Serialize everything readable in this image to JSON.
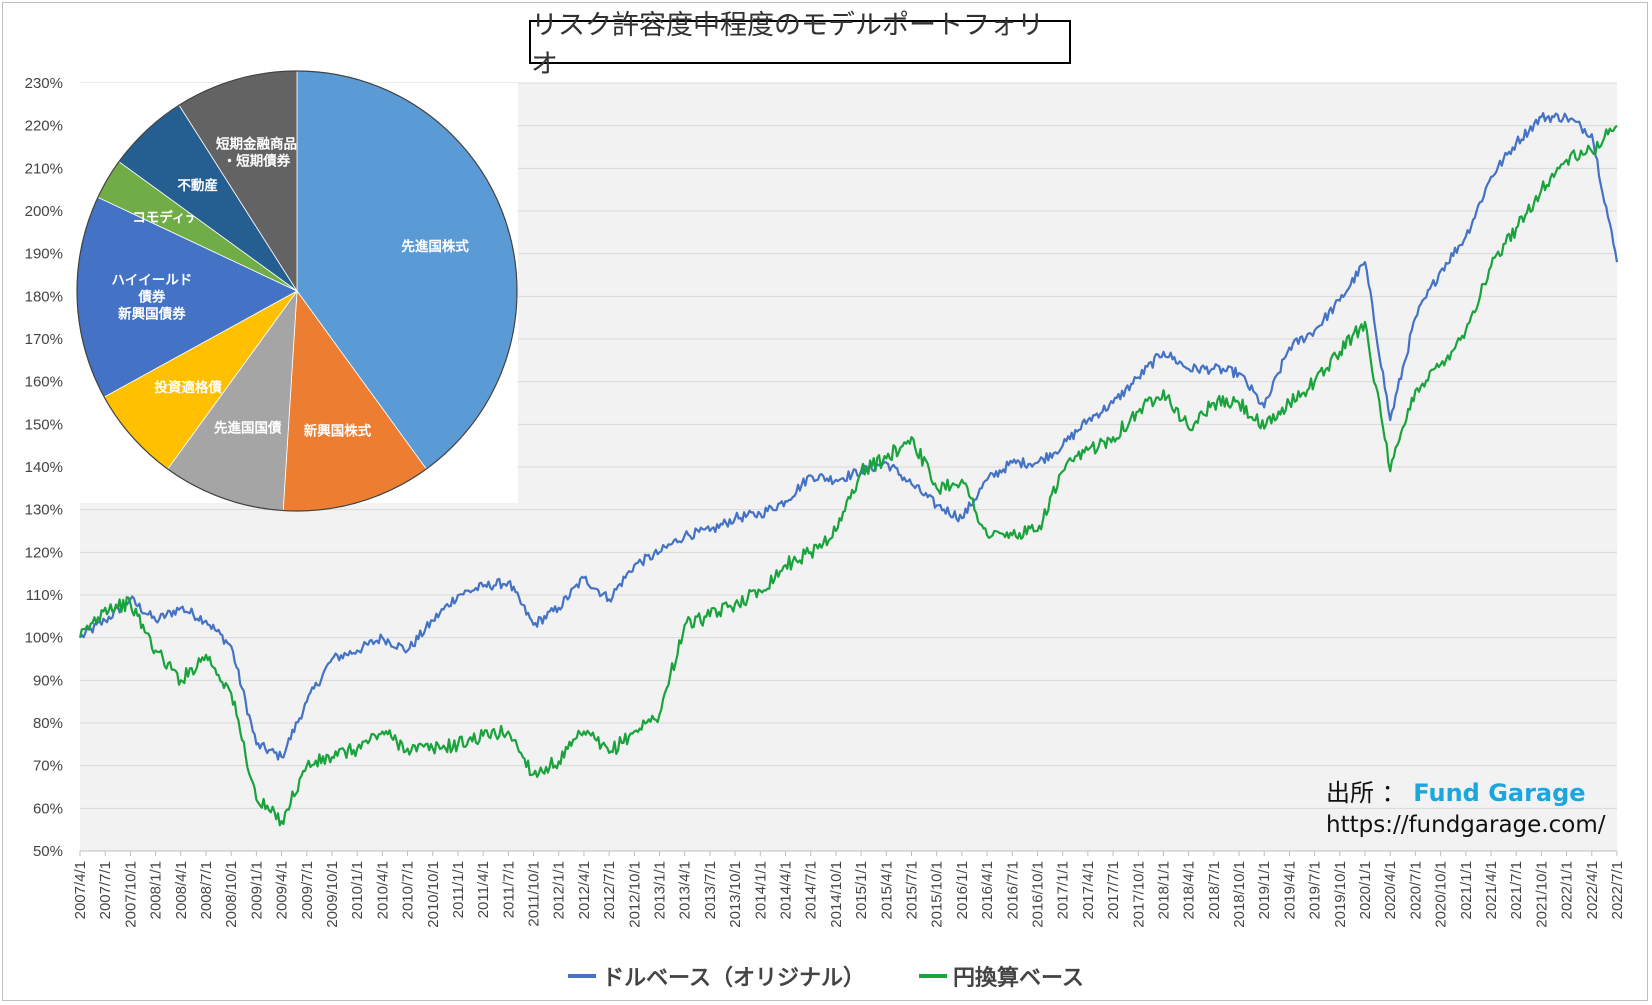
{
  "title": "リスク許容度中程度のモデルポートフォリオ",
  "source": {
    "label": "出所 ：",
    "brand": "Fund Garage",
    "url": "https://fundgarage.com/"
  },
  "chart_data": [
    {
      "type": "line",
      "ylim": [
        50,
        230
      ],
      "yticks": [
        "50%",
        "60%",
        "70%",
        "80%",
        "90%",
        "100%",
        "110%",
        "120%",
        "130%",
        "140%",
        "150%",
        "160%",
        "170%",
        "180%",
        "190%",
        "200%",
        "210%",
        "220%",
        "230%"
      ],
      "grid": true,
      "legend_position": "bottom",
      "categories": [
        "2007/4/1",
        "2007/7/1",
        "2007/10/1",
        "2008/1/1",
        "2008/4/1",
        "2008/7/1",
        "2008/10/1",
        "2009/1/1",
        "2009/4/1",
        "2009/7/1",
        "2009/10/1",
        "2010/1/1",
        "2010/4/1",
        "2010/7/1",
        "2010/10/1",
        "2011/1/1",
        "2011/4/1",
        "2011/7/1",
        "2011/10/1",
        "2012/1/1",
        "2012/4/1",
        "2012/7/1",
        "2012/10/1",
        "2013/1/1",
        "2013/4/1",
        "2013/7/1",
        "2013/10/1",
        "2014/1/1",
        "2014/4/1",
        "2014/7/1",
        "2014/10/1",
        "2015/1/1",
        "2015/4/1",
        "2015/7/1",
        "2015/10/1",
        "2016/1/1",
        "2016/4/1",
        "2016/7/1",
        "2016/10/1",
        "2017/1/1",
        "2017/4/1",
        "2017/7/1",
        "2017/10/1",
        "2018/1/1",
        "2018/4/1",
        "2018/7/1",
        "2018/10/1",
        "2019/1/1",
        "2019/4/1",
        "2019/7/1",
        "2019/10/1",
        "2020/1/1",
        "2020/4/1",
        "2020/7/1",
        "2020/10/1",
        "2021/1/1",
        "2021/4/1",
        "2021/7/1",
        "2021/10/1",
        "2022/1/1",
        "2022/4/1",
        "2022/7/1"
      ],
      "series": [
        {
          "name": "ドルベース（オリジナル）",
          "color": "#4472c4",
          "values": [
            100,
            104,
            109,
            104,
            107,
            104,
            98,
            75,
            72,
            85,
            95,
            97,
            100,
            97,
            104,
            110,
            112,
            113,
            103,
            107,
            114,
            109,
            117,
            120,
            124,
            125,
            128,
            129,
            132,
            138,
            137,
            139,
            141,
            136,
            131,
            128,
            137,
            141,
            141,
            145,
            151,
            155,
            161,
            167,
            163,
            163,
            162,
            154,
            168,
            172,
            179,
            188,
            151,
            175,
            186,
            194,
            208,
            216,
            222,
            222,
            218,
            188
          ]
        },
        {
          "name": "円換算ベース",
          "color": "#1aa33c",
          "values": [
            100,
            107,
            108,
            97,
            90,
            96,
            87,
            62,
            57,
            70,
            72,
            74,
            78,
            74,
            74,
            75,
            77,
            78,
            68,
            71,
            78,
            73,
            78,
            82,
            103,
            105,
            108,
            111,
            117,
            120,
            125,
            139,
            142,
            147,
            135,
            137,
            124,
            124,
            125,
            139,
            144,
            147,
            153,
            158,
            149,
            155,
            155,
            149,
            155,
            160,
            167,
            174,
            139,
            158,
            164,
            172,
            187,
            196,
            205,
            212,
            214,
            220
          ]
        }
      ]
    },
    {
      "type": "pie",
      "slices": [
        {
          "label": "先進国株式",
          "value": 40,
          "color": "#5b9bd5"
        },
        {
          "label": "新興国株式",
          "value": 11,
          "color": "#ed7d31"
        },
        {
          "label": "先進国国債",
          "value": 9,
          "color": "#a5a5a5"
        },
        {
          "label": "投資適格債",
          "value": 7,
          "color": "#ffc000"
        },
        {
          "label": "ハイイールド\n債券\n新興国債券",
          "value": 15,
          "color": "#4472c4"
        },
        {
          "label": "コモディティ",
          "value": 3,
          "color": "#70ad47"
        },
        {
          "label": "不動産",
          "value": 6,
          "color": "#255e91"
        },
        {
          "label": "短期金融商品\n・短期債券",
          "value": 9,
          "color": "#636363"
        }
      ]
    }
  ]
}
